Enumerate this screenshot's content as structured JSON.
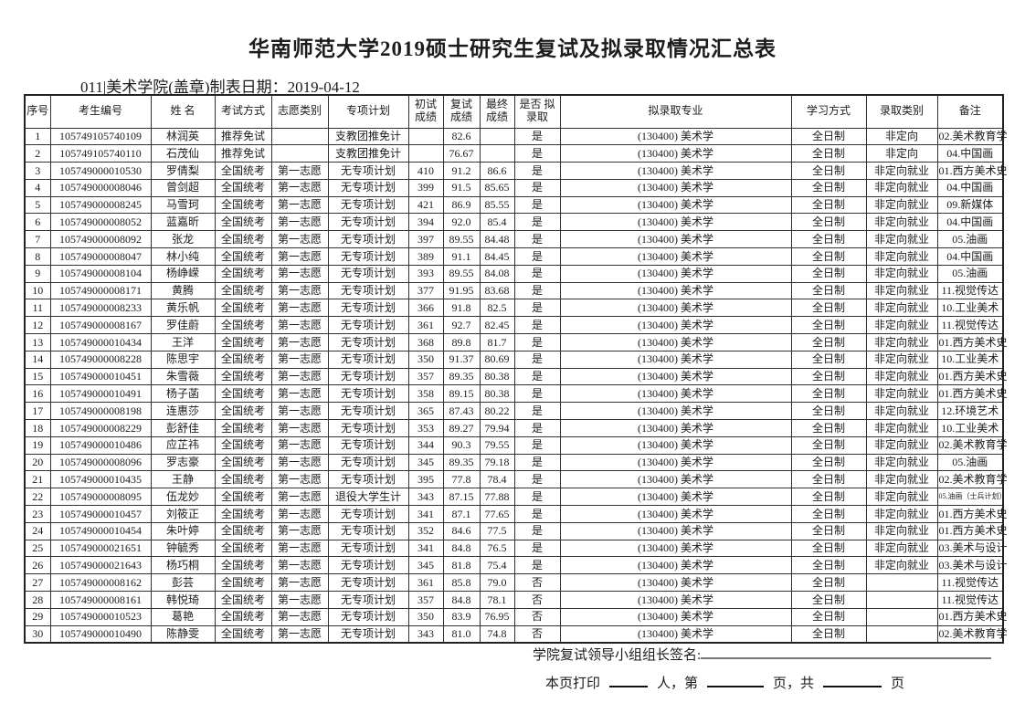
{
  "title": "华南师范大学2019硕士研究生复试及拟录取情况汇总表",
  "subtitle": "011|美术学院(盖章)制表日期：2019-04-12",
  "table": {
    "headers": [
      "序号",
      "考生编号",
      "姓 名",
      "考试方式",
      "志愿类别",
      "专项计划",
      "初试 成绩",
      "复试 成绩",
      "最终 成绩",
      "是否 拟录取",
      "拟录取专业",
      "学习方式",
      "录取类别",
      "备注"
    ],
    "rows": [
      [
        "1",
        "105749105740109",
        "林润英",
        "推荐免试",
        "",
        "支教团推免计",
        "",
        "82.6",
        "",
        "是",
        "(130400) 美术学",
        "全日制",
        "非定向",
        "02.美术教育学"
      ],
      [
        "2",
        "105749105740110",
        "石茂仙",
        "推荐免试",
        "",
        "支教团推免计",
        "",
        "76.67",
        "",
        "是",
        "(130400) 美术学",
        "全日制",
        "非定向",
        "04.中国画"
      ],
      [
        "3",
        "105749000010530",
        "罗倩梨",
        "全国统考",
        "第一志愿",
        "无专项计划",
        "410",
        "91.2",
        "86.6",
        "是",
        "(130400) 美术学",
        "全日制",
        "非定向就业",
        "01.西方美术史"
      ],
      [
        "4",
        "105749000008046",
        "曾剑超",
        "全国统考",
        "第一志愿",
        "无专项计划",
        "399",
        "91.5",
        "85.65",
        "是",
        "(130400) 美术学",
        "全日制",
        "非定向就业",
        "04.中国画"
      ],
      [
        "5",
        "105749000008245",
        "马雪珂",
        "全国统考",
        "第一志愿",
        "无专项计划",
        "421",
        "86.9",
        "85.55",
        "是",
        "(130400) 美术学",
        "全日制",
        "非定向就业",
        "09.新媒体"
      ],
      [
        "6",
        "105749000008052",
        "蓝嘉昕",
        "全国统考",
        "第一志愿",
        "无专项计划",
        "394",
        "92.0",
        "85.4",
        "是",
        "(130400) 美术学",
        "全日制",
        "非定向就业",
        "04.中国画"
      ],
      [
        "7",
        "105749000008092",
        "张龙",
        "全国统考",
        "第一志愿",
        "无专项计划",
        "397",
        "89.55",
        "84.48",
        "是",
        "(130400) 美术学",
        "全日制",
        "非定向就业",
        "05.油画"
      ],
      [
        "8",
        "105749000008047",
        "林小纯",
        "全国统考",
        "第一志愿",
        "无专项计划",
        "389",
        "91.1",
        "84.45",
        "是",
        "(130400) 美术学",
        "全日制",
        "非定向就业",
        "04.中国画"
      ],
      [
        "9",
        "105749000008104",
        "杨峥嵘",
        "全国统考",
        "第一志愿",
        "无专项计划",
        "393",
        "89.55",
        "84.08",
        "是",
        "(130400) 美术学",
        "全日制",
        "非定向就业",
        "05.油画"
      ],
      [
        "10",
        "105749000008171",
        "黄腾",
        "全国统考",
        "第一志愿",
        "无专项计划",
        "377",
        "91.95",
        "83.68",
        "是",
        "(130400) 美术学",
        "全日制",
        "非定向就业",
        "11.视觉传达"
      ],
      [
        "11",
        "105749000008233",
        "黄乐帆",
        "全国统考",
        "第一志愿",
        "无专项计划",
        "366",
        "91.8",
        "82.5",
        "是",
        "(130400) 美术学",
        "全日制",
        "非定向就业",
        "10.工业美术"
      ],
      [
        "12",
        "105749000008167",
        "罗佳蔚",
        "全国统考",
        "第一志愿",
        "无专项计划",
        "361",
        "92.7",
        "82.45",
        "是",
        "(130400) 美术学",
        "全日制",
        "非定向就业",
        "11.视觉传达"
      ],
      [
        "13",
        "105749000010434",
        "王洋",
        "全国统考",
        "第一志愿",
        "无专项计划",
        "368",
        "89.8",
        "81.7",
        "是",
        "(130400) 美术学",
        "全日制",
        "非定向就业",
        "01.西方美术史"
      ],
      [
        "14",
        "105749000008228",
        "陈思宇",
        "全国统考",
        "第一志愿",
        "无专项计划",
        "350",
        "91.37",
        "80.69",
        "是",
        "(130400) 美术学",
        "全日制",
        "非定向就业",
        "10.工业美术"
      ],
      [
        "15",
        "105749000010451",
        "朱雪薇",
        "全国统考",
        "第一志愿",
        "无专项计划",
        "357",
        "89.35",
        "80.38",
        "是",
        "(130400) 美术学",
        "全日制",
        "非定向就业",
        "01.西方美术史"
      ],
      [
        "16",
        "105749000010491",
        "杨子菡",
        "全国统考",
        "第一志愿",
        "无专项计划",
        "358",
        "89.15",
        "80.38",
        "是",
        "(130400) 美术学",
        "全日制",
        "非定向就业",
        "01.西方美术史"
      ],
      [
        "17",
        "105749000008198",
        "连惠莎",
        "全国统考",
        "第一志愿",
        "无专项计划",
        "365",
        "87.43",
        "80.22",
        "是",
        "(130400) 美术学",
        "全日制",
        "非定向就业",
        "12.环境艺术"
      ],
      [
        "18",
        "105749000008229",
        "彭舒佳",
        "全国统考",
        "第一志愿",
        "无专项计划",
        "353",
        "89.27",
        "79.94",
        "是",
        "(130400) 美术学",
        "全日制",
        "非定向就业",
        "10.工业美术"
      ],
      [
        "19",
        "105749000010486",
        "应芷祎",
        "全国统考",
        "第一志愿",
        "无专项计划",
        "344",
        "90.3",
        "79.55",
        "是",
        "(130400) 美术学",
        "全日制",
        "非定向就业",
        "02.美术教育学"
      ],
      [
        "20",
        "105749000008096",
        "罗志豪",
        "全国统考",
        "第一志愿",
        "无专项计划",
        "345",
        "89.35",
        "79.18",
        "是",
        "(130400) 美术学",
        "全日制",
        "非定向就业",
        "05.油画"
      ],
      [
        "21",
        "105749000010435",
        "王静",
        "全国统考",
        "第一志愿",
        "无专项计划",
        "395",
        "77.8",
        "78.4",
        "是",
        "(130400) 美术学",
        "全日制",
        "非定向就业",
        "02.美术教育学"
      ],
      [
        "22",
        "105749000008095",
        "伍龙妙",
        "全国统考",
        "第一志愿",
        "退役大学生计",
        "343",
        "87.15",
        "77.88",
        "是",
        "(130400) 美术学",
        "全日制",
        "非定向就业",
        "05.油画（士兵计划）"
      ],
      [
        "23",
        "105749000010457",
        "刘筱正",
        "全国统考",
        "第一志愿",
        "无专项计划",
        "341",
        "87.1",
        "77.65",
        "是",
        "(130400) 美术学",
        "全日制",
        "非定向就业",
        "01.西方美术史"
      ],
      [
        "24",
        "105749000010454",
        "朱叶婷",
        "全国统考",
        "第一志愿",
        "无专项计划",
        "352",
        "84.6",
        "77.5",
        "是",
        "(130400) 美术学",
        "全日制",
        "非定向就业",
        "01.西方美术史"
      ],
      [
        "25",
        "105749000021651",
        "钟毓秀",
        "全国统考",
        "第一志愿",
        "无专项计划",
        "341",
        "84.8",
        "76.5",
        "是",
        "(130400) 美术学",
        "全日制",
        "非定向就业",
        "03.美术与设计"
      ],
      [
        "26",
        "105749000021643",
        "杨巧桐",
        "全国统考",
        "第一志愿",
        "无专项计划",
        "345",
        "81.8",
        "75.4",
        "是",
        "(130400) 美术学",
        "全日制",
        "非定向就业",
        "03.美术与设计"
      ],
      [
        "27",
        "105749000008162",
        "彭芸",
        "全国统考",
        "第一志愿",
        "无专项计划",
        "361",
        "85.8",
        "79.0",
        "否",
        "(130400) 美术学",
        "全日制",
        "",
        "11.视觉传达"
      ],
      [
        "28",
        "105749000008161",
        "韩悦琦",
        "全国统考",
        "第一志愿",
        "无专项计划",
        "357",
        "84.8",
        "78.1",
        "否",
        "(130400) 美术学",
        "全日制",
        "",
        "11.视觉传达"
      ],
      [
        "29",
        "105749000010523",
        "葛艳",
        "全国统考",
        "第一志愿",
        "无专项计划",
        "350",
        "83.9",
        "76.95",
        "否",
        "(130400) 美术学",
        "全日制",
        "",
        "01.西方美术史"
      ],
      [
        "30",
        "105749000010490",
        "陈静雯",
        "全国统考",
        "第一志愿",
        "无专项计划",
        "343",
        "81.0",
        "74.8",
        "否",
        "(130400) 美术学",
        "全日制",
        "",
        "02.美术教育学"
      ]
    ]
  },
  "footer": {
    "signature_label": "学院复试领导小组组长签名:",
    "print_prefix": "本页打印",
    "seg_people": "人，第",
    "seg_pages": "页，共",
    "seg_end": "页"
  }
}
